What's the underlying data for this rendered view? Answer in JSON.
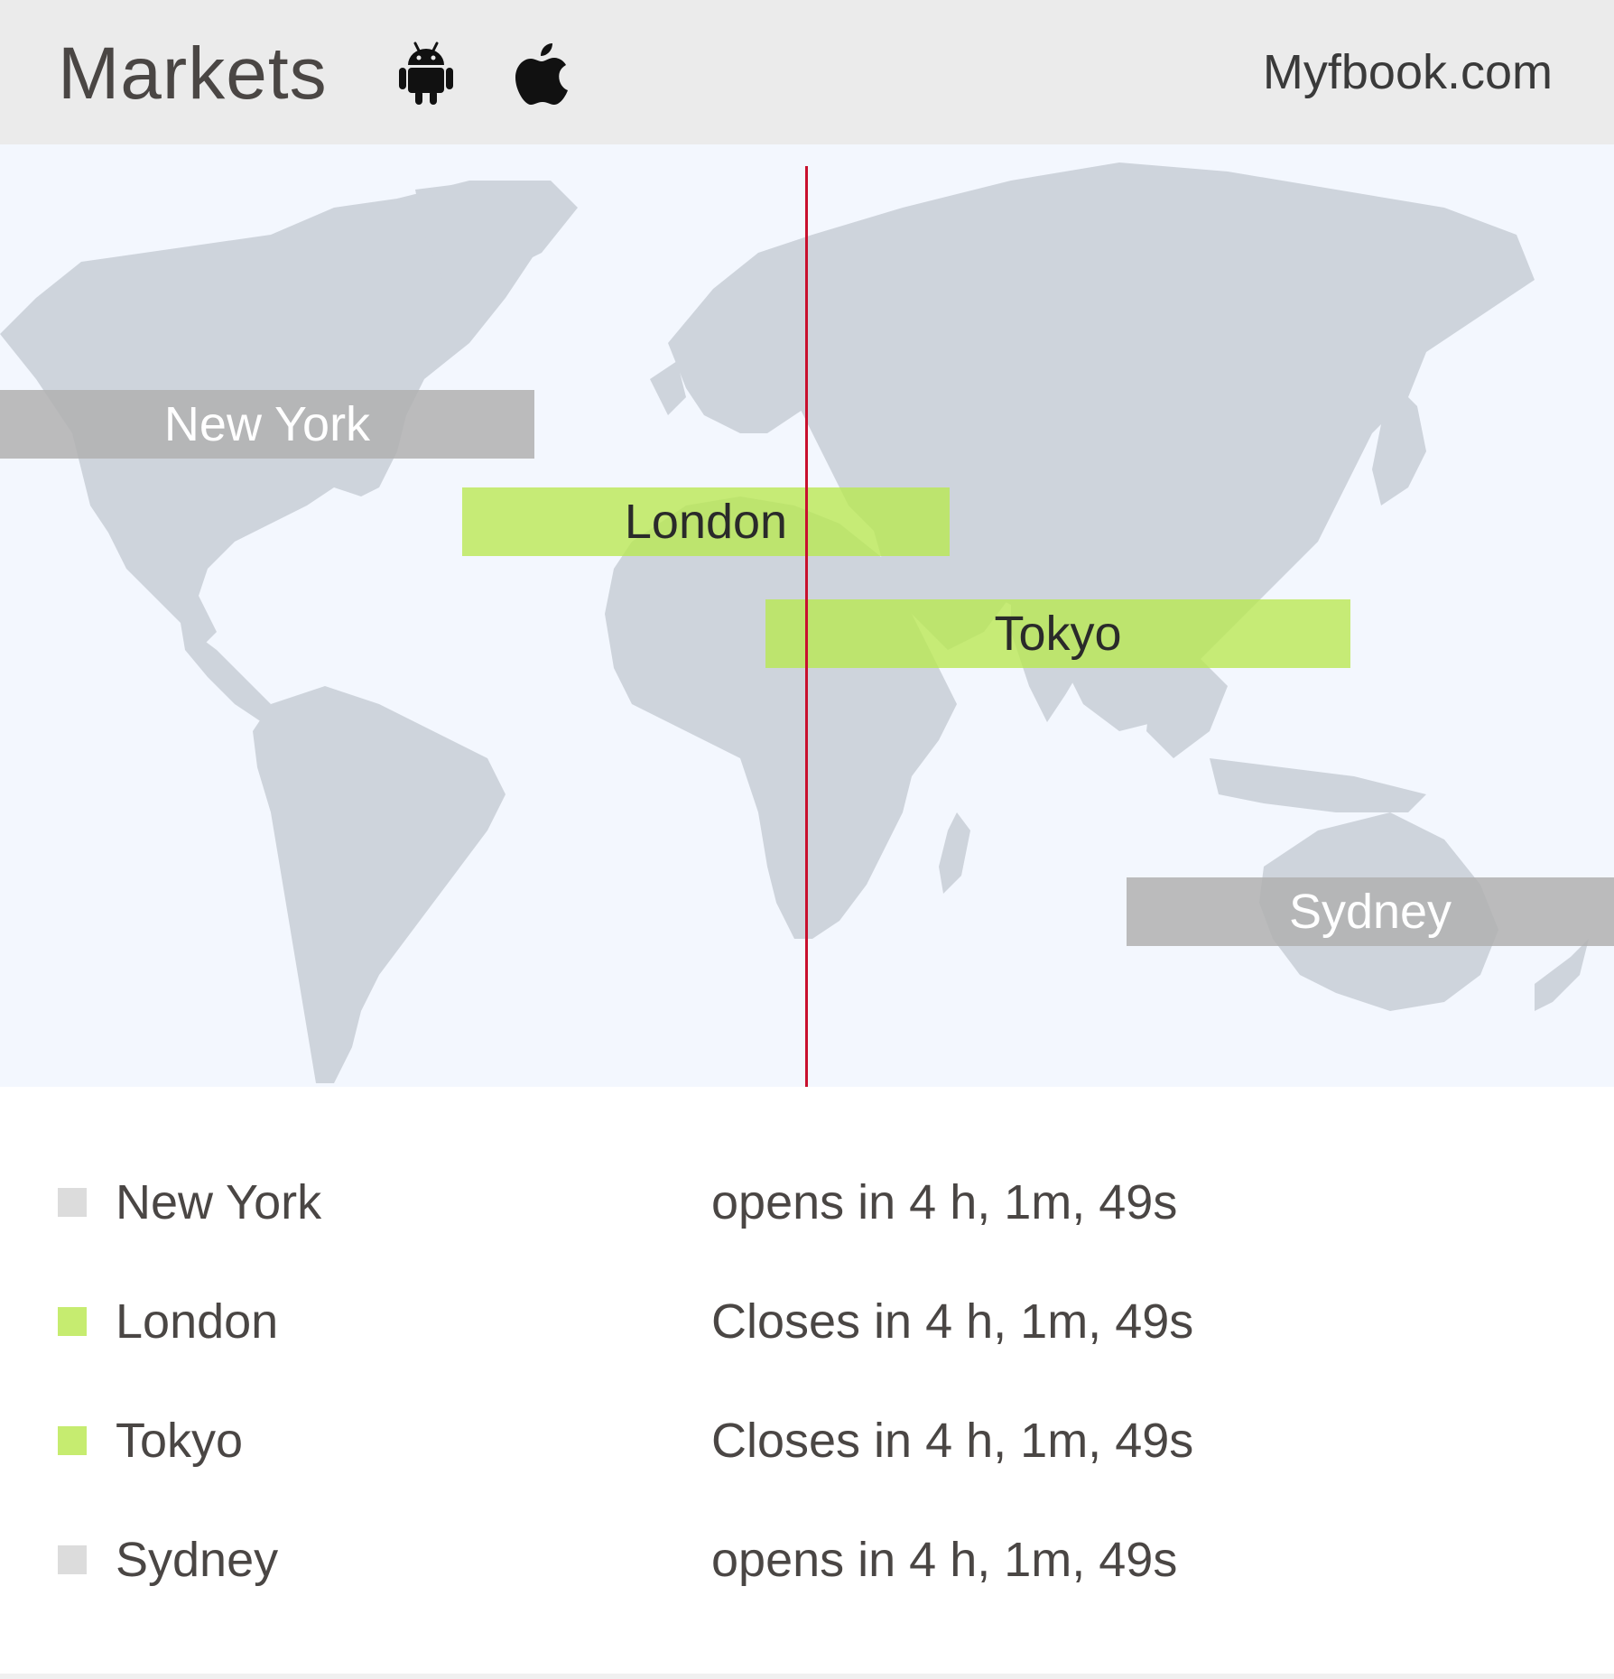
{
  "header": {
    "title": "Markets",
    "brand": "Myfbook.com",
    "icons": [
      "android-icon",
      "apple-icon"
    ]
  },
  "colors": {
    "open": "#b8e850",
    "closed": "#b0b0b0",
    "now_line": "#c8102e",
    "map_land": "#ced4dc",
    "map_bg": "#f3f7fe"
  },
  "map": {
    "sessions": [
      {
        "city": "New York",
        "state": "closed"
      },
      {
        "city": "London",
        "state": "open"
      },
      {
        "city": "Tokyo",
        "state": "open"
      },
      {
        "city": "Sydney",
        "state": "closed"
      }
    ]
  },
  "markets": [
    {
      "city": "New York",
      "state": "closed",
      "status": "opens in 4 h, 1m, 49s"
    },
    {
      "city": "London",
      "state": "open",
      "status": "Closes in 4 h, 1m, 49s"
    },
    {
      "city": "Tokyo",
      "state": "open",
      "status": "Closes in 4 h, 1m, 49s"
    },
    {
      "city": "Sydney",
      "state": "closed",
      "status": "opens in 4 h, 1m, 49s"
    }
  ]
}
